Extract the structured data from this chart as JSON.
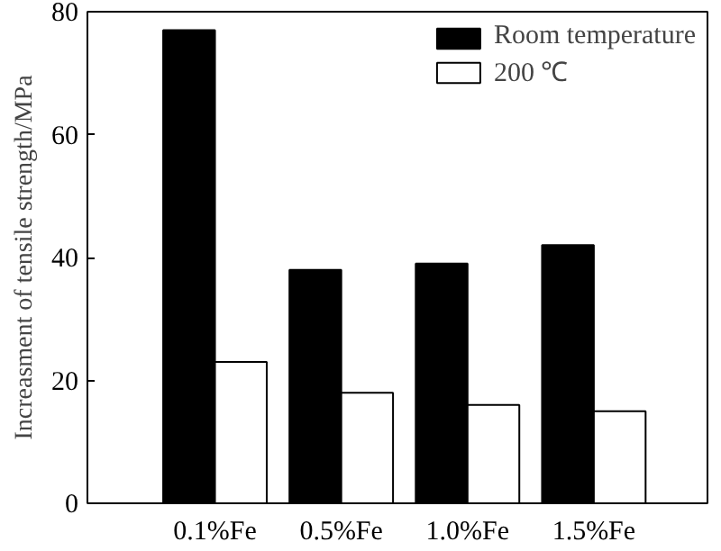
{
  "chart_data": {
    "type": "bar",
    "ylabel": "Increasment of tensile strength/MPa",
    "categories": [
      "0.1%Fe",
      "0.5%Fe",
      "1.0%Fe",
      "1.5%Fe"
    ],
    "series": [
      {
        "name": "Room temperature",
        "color": "#000000",
        "values": [
          77,
          38,
          39,
          42
        ]
      },
      {
        "name": "200 ℃",
        "color": "#ffffff",
        "values": [
          23,
          18,
          16,
          15
        ]
      }
    ],
    "ylim": [
      0,
      80
    ],
    "yticks": [
      0,
      20,
      40,
      60,
      80
    ],
    "grid": false,
    "legend": "top right"
  }
}
